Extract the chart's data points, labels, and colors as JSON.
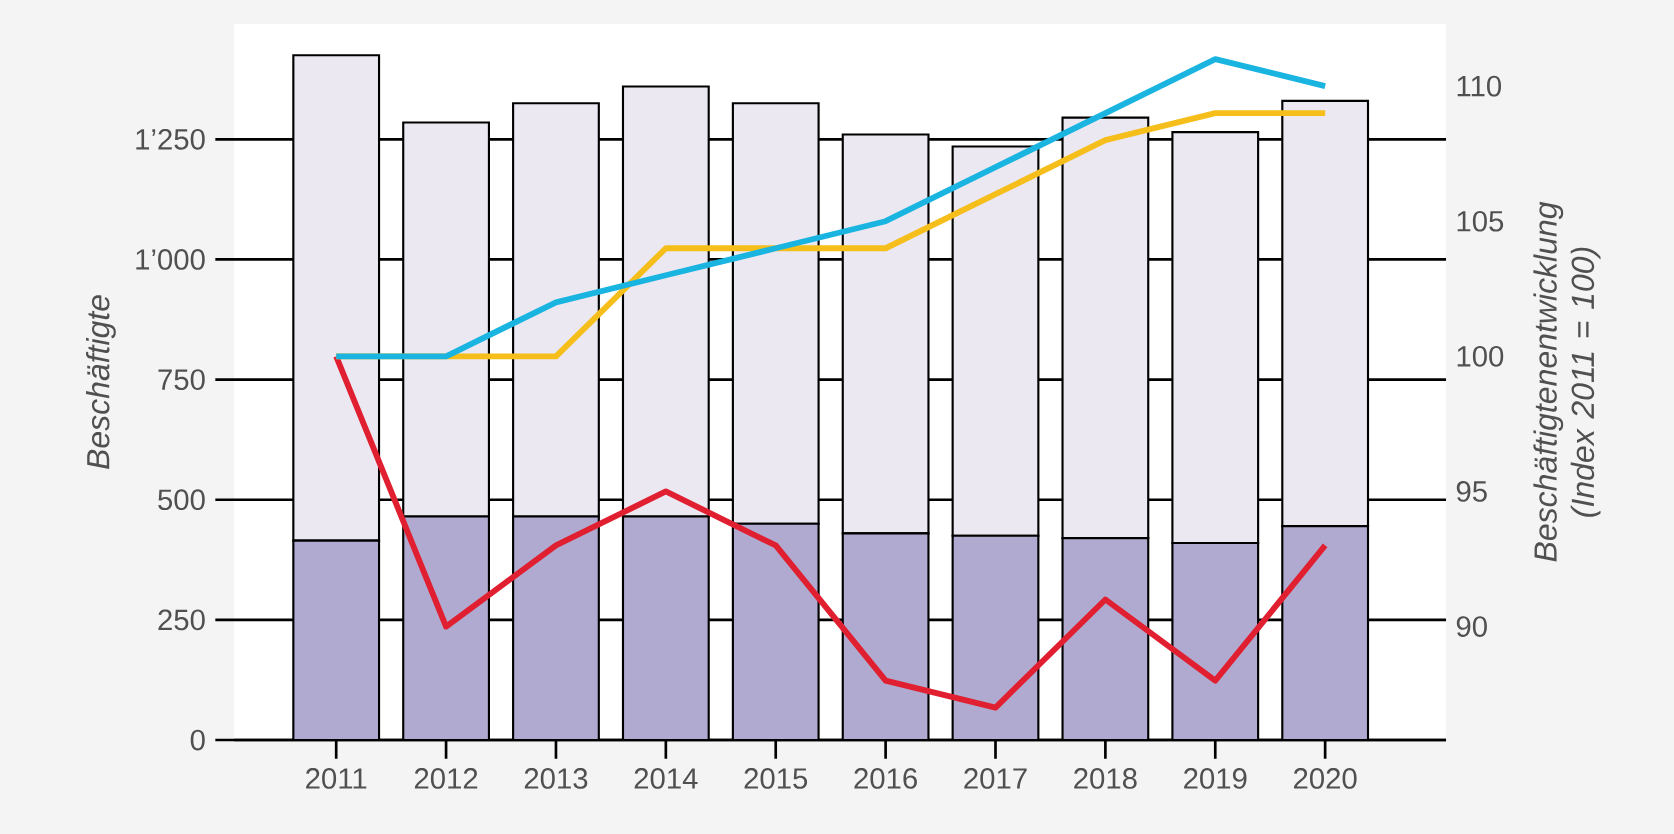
{
  "chart_data": {
    "type": "bar",
    "ylabel": "Beschäftigte",
    "y2label": "Beschäftigtenentwicklung (Index 2011 = 100)",
    "categories": [
      "2011",
      "2012",
      "2013",
      "2014",
      "2015",
      "2016",
      "2017",
      "2018",
      "2019",
      "2020"
    ],
    "stacked": true,
    "grid": "y",
    "marker": "none",
    "ylim": [
      0,
      1490
    ],
    "yticks": [
      0,
      250,
      500,
      750,
      {
        "value": 1000,
        "label": "1’000"
      },
      {
        "value": 1250,
        "label": "1’250"
      }
    ],
    "y2lim": [
      85.8,
      112.3
    ],
    "y2ticks": [
      90,
      95,
      100,
      105,
      110
    ],
    "series": [
      {
        "color": "#b1aad0",
        "values": [
          415,
          465,
          465,
          465,
          450,
          430,
          425,
          420,
          410,
          445
        ]
      },
      {
        "color": "#ebe8f2",
        "values": [
          1010,
          820,
          860,
          895,
          875,
          830,
          810,
          875,
          855,
          885
        ]
      },
      {
        "type": "line",
        "axis": "y2",
        "color": "#e02030",
        "values": [
          100,
          90,
          93,
          95,
          93,
          88,
          87,
          91,
          88,
          93
        ]
      },
      {
        "type": "line",
        "axis": "y2",
        "color": "#f5be1a",
        "values": [
          100,
          100,
          100,
          104,
          104,
          104,
          106,
          108,
          109,
          109
        ]
      },
      {
        "type": "line",
        "axis": "y2",
        "color": "#1ab4e0",
        "values": [
          100,
          100,
          102,
          103,
          104,
          105,
          107,
          109,
          111,
          110
        ]
      }
    ]
  }
}
